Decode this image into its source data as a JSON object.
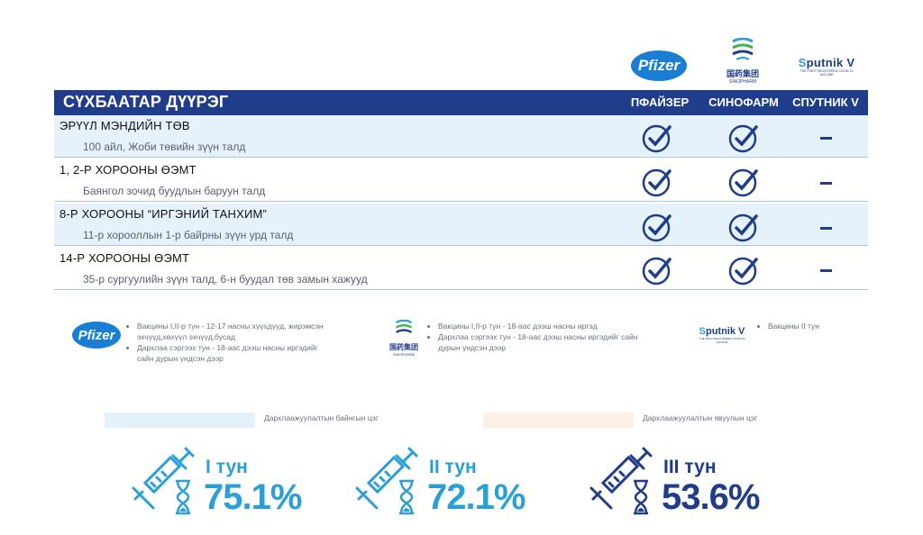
{
  "logos": {
    "pfizer": "Pfizer",
    "sinopharm_cn": "国药集团",
    "sinopharm_en": "SINOPHARM",
    "sputnik_s": "S",
    "sputnik_rest": "putnik V",
    "sputnik_tag": "THE FIRST REGISTERED COVID-19 VACCINE"
  },
  "table": {
    "district_title": "СҮХБААТАР ДҮҮРЭГ",
    "columns": [
      "ПФАЙЗЕР",
      "СИНОФАРМ",
      "СПУТНИК V"
    ],
    "rows": [
      {
        "name": "ЭРҮҮЛ МЭНДИЙН ТӨВ",
        "address": "100 айл, Жоби төвийн зүүн талд",
        "pfizer": "check",
        "sinopharm": "check",
        "sputnik": "none"
      },
      {
        "name": "1, 2-Р ХОРООНЫ ӨЭМТ",
        "address": "Баянгол зочид буудлын баруун талд",
        "pfizer": "check",
        "sinopharm": "check",
        "sputnik": "none"
      },
      {
        "name": "8-Р ХОРООНЫ “ИРГЭНИЙ ТАНХИМ”",
        "address": "11-р хорооллын 1-р байрны зүүн урд талд",
        "pfizer": "check",
        "sinopharm": "check",
        "sputnik": "none"
      },
      {
        "name": "14-Р ХОРООНЫ ӨЭМТ",
        "address": "35-р сургуулийн зүүн талд, 6-н буудал төв замын хажууд",
        "pfizer": "check",
        "sinopharm": "check",
        "sputnik": "none"
      }
    ]
  },
  "notes": {
    "pfizer": [
      "Вакцины I,II-р тун - 12-17 насны хүүхдүүд, жирэмсэн эхчүүд,хөхүүл эхчүүд,бусад",
      "Дархлаа сэргээх тун - 18-аас дээш насны иргэдийг сайн дурын үндсэн дээр"
    ],
    "sinopharm": [
      "Вакцины I,II-р тун - 18-аас дээш насны иргэд",
      "Дархлаа сэргээх тун - 18-аас дээш насны иргэдийг сайн дурын үндсэн дээр"
    ],
    "sputnik": [
      "Вакцины II тун"
    ]
  },
  "legend": {
    "permanent": "Дархлаажуулалтын байнгын цэг",
    "mobile": "Дархлаажуулалтын явуулын цэг",
    "permanent_color": "#e3f1fb",
    "mobile_color": "#fcefe3"
  },
  "stats": [
    {
      "dose": "I тун",
      "percent": "75.1%",
      "color": "#2a9fd8"
    },
    {
      "dose": "II тун",
      "percent": "72.1%",
      "color": "#2a9fd8"
    },
    {
      "dose": "III тун",
      "percent": "53.6%",
      "color": "#1f3d8a"
    }
  ]
}
